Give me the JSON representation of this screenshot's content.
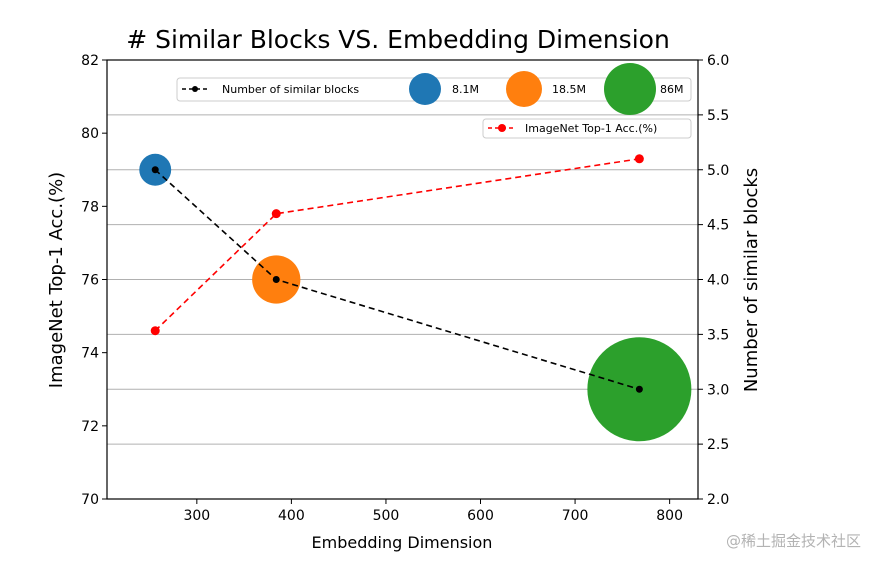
{
  "chart_data": {
    "type": "line",
    "title": "# Similar Blocks VS. Embedding Dimension",
    "xlabel": "Embedding Dimension",
    "ylabel_left": "ImageNet Top-1 Acc.(%)",
    "ylabel_right": "Number of similar blocks",
    "xlim": [
      205,
      830
    ],
    "ylim_left": [
      70,
      82
    ],
    "ylim_right": [
      2.0,
      6.0
    ],
    "x_ticks": [
      300,
      400,
      500,
      600,
      700,
      800
    ],
    "y_left_ticks": [
      70,
      72,
      74,
      76,
      78,
      80,
      82
    ],
    "y_right_ticks": [
      2.0,
      2.5,
      3.0,
      3.5,
      4.0,
      4.5,
      5.0,
      5.5,
      6.0
    ],
    "x_tick_labels": [
      "300",
      "400",
      "500",
      "600",
      "700",
      "800"
    ],
    "y_left_tick_labels": [
      "70",
      "72",
      "74",
      "76",
      "78",
      "80",
      "82"
    ],
    "y_right_tick_labels": [
      "2.0",
      "2.5",
      "3.0",
      "3.5",
      "4.0",
      "4.5",
      "5.0",
      "5.5",
      "6.0"
    ],
    "grid": "horizontal (right axis)",
    "series": [
      {
        "name": "Number of similar blocks",
        "axis": "right",
        "color": "#000000",
        "style": "dashed",
        "x": [
          256,
          384,
          768
        ],
        "values": [
          5.0,
          4.0,
          3.0
        ]
      },
      {
        "name": "ImageNet Top-1 Acc.(%)",
        "axis": "left",
        "color": "#ff0000",
        "style": "dashed",
        "x": [
          256,
          384,
          768
        ],
        "values": [
          74.6,
          77.8,
          79.3
        ]
      }
    ],
    "bubbles": [
      {
        "label": "8.1M",
        "params_millions": 8.1,
        "x": 256,
        "y_right": 5.0,
        "color": "#1f77b4"
      },
      {
        "label": "18.5M",
        "params_millions": 18.5,
        "x": 384,
        "y_right": 4.0,
        "color": "#ff7f0e"
      },
      {
        "label": "86M",
        "params_millions": 86,
        "x": 768,
        "y_right": 3.0,
        "color": "#2ca02c"
      }
    ],
    "legend_upper": "top-right",
    "legend_lower": "right, below upper legend"
  },
  "watermark": "@稀土掘金技术社区"
}
